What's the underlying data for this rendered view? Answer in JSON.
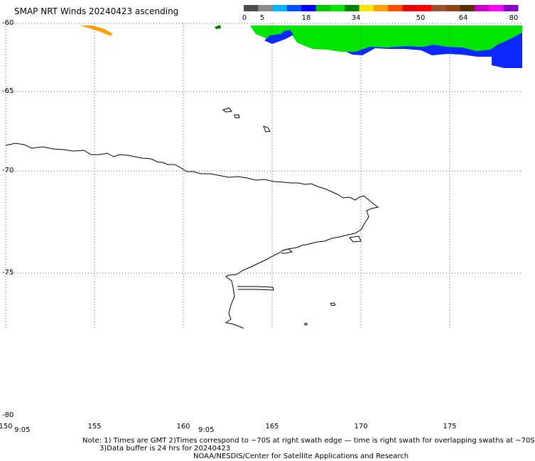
{
  "title": "SMAP NRT Winds 20240423 ascending",
  "colorbar": {
    "labels": [
      "0",
      "5",
      "18",
      "34",
      "50",
      "64",
      "80"
    ],
    "colors": [
      "#4d4d4d",
      "#8c8c8c",
      "#00b4ff",
      "#0050ff",
      "#0000ff",
      "#00c800",
      "#00e600",
      "#008200",
      "#ffe600",
      "#ffa000",
      "#ff5000",
      "#e60000",
      "#ff0000",
      "#a0522d",
      "#8b4513",
      "#5a2d0c",
      "#c800c8",
      "#ff00ff",
      "#8c00c8"
    ]
  },
  "latitude_labels": [
    "-60",
    "-65",
    "-70",
    "-75",
    "-80"
  ],
  "longitude_labels": [
    "150",
    "155",
    "160",
    "165",
    "170",
    "175"
  ],
  "time_labels": [
    "9:05",
    "9:05"
  ],
  "notes": {
    "line1": "Note: 1) Times are GMT 2)Times correspond to ~70S at right swath edge — time is right swath for overlapping swaths at ~70S",
    "line2": "3)Data buffer is 24 hrs for 20240423",
    "line3": "NOAA/NESDIS/Center for Satellite Applications and Research"
  },
  "colors": {
    "land_outline": "#000000",
    "grid": "#606060",
    "wind_green": "#00e600",
    "wind_blue": "#0a28ff",
    "wind_orange": "#ffa000",
    "wind_darkgreen": "#008200"
  }
}
